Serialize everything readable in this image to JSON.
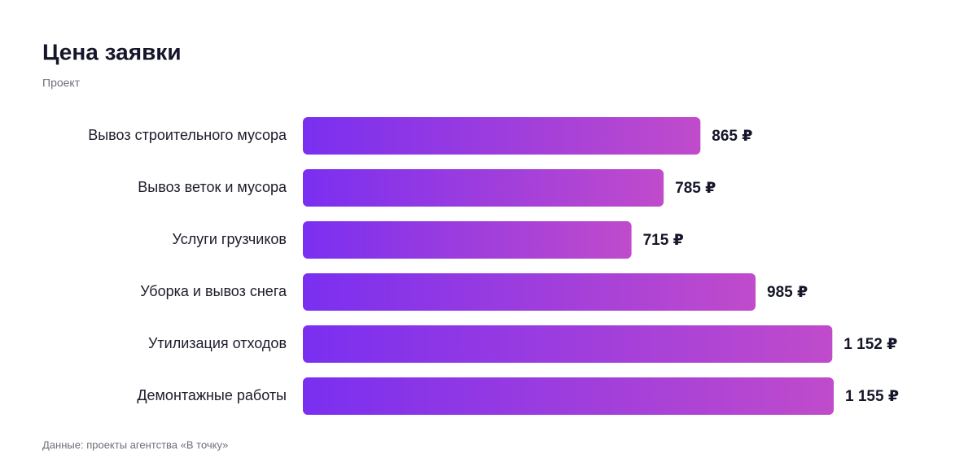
{
  "chart_data": {
    "type": "barh",
    "title": "Цена заявки",
    "subtitle": "Проект",
    "categories": [
      "Вывоз строительного мусора",
      "Вывоз веток и мусора",
      "Услуги грузчиков",
      "Уборка и вывоз снега",
      "Утилизация отходов",
      "Демонтажные работы"
    ],
    "values": [
      865,
      785,
      715,
      985,
      1152,
      1155
    ],
    "value_labels": [
      "865 ₽",
      "785 ₽",
      "715 ₽",
      "985 ₽",
      "1 152 ₽",
      "1 155 ₽"
    ],
    "color": [
      "#7a2ff0",
      "#c04bcb"
    ],
    "source": "Данные: проекты агентства «В точку»"
  }
}
